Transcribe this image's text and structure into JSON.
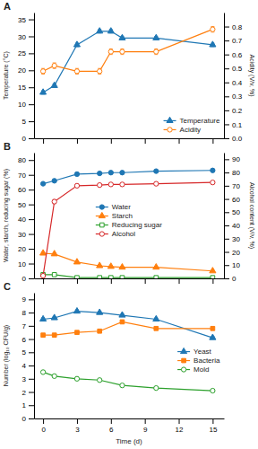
{
  "chart_data": [
    {
      "type": "line",
      "title": "A",
      "x": [
        0,
        1,
        3,
        5,
        6,
        7,
        10,
        15
      ],
      "xlim": [
        -0.8,
        16
      ],
      "xticks": [
        0,
        3,
        6,
        9,
        12,
        15
      ],
      "tick_labels": "y",
      "ylabel": "Temperature (°C)",
      "y2label": "Acidity (V/v, %)",
      "ylim": [
        0,
        37
      ],
      "yticks": [
        0,
        5,
        10,
        15,
        20,
        25,
        30,
        35
      ],
      "y2lim": [
        0,
        0.9
      ],
      "y2ticks": [
        {
          "value": 0,
          "label": "0.0"
        },
        0.1,
        0.2,
        0.3,
        0.4,
        0.5,
        0.6,
        0.7,
        0.8
      ],
      "grid": false,
      "legend": "lower right",
      "series": [
        {
          "name": "Temperature",
          "marker": "triangle",
          "values": [
            13.5,
            15.5,
            27.5,
            31.5,
            31.5,
            29.5,
            29.5,
            27.5
          ],
          "errors": [
            0.5,
            0.5,
            0.5,
            0.5,
            0.5,
            0.5,
            0.5,
            0.5
          ]
        },
        {
          "name": "Acidity",
          "marker": "circle-open",
          "axis": "y2",
          "values": [
            0.48,
            0.52,
            0.48,
            0.48,
            0.62,
            0.62,
            0.62,
            0.78
          ],
          "errors": [
            0.02,
            0.02,
            0.02,
            0.02,
            0.02,
            0.02,
            0.02,
            0.02
          ]
        }
      ]
    },
    {
      "type": "line",
      "title": "B",
      "x": [
        0,
        1,
        3,
        5,
        6,
        7,
        10,
        15
      ],
      "xlim": [
        -0.8,
        16
      ],
      "xticks": [
        0,
        3,
        6,
        9,
        12,
        15
      ],
      "tick_labels": "y",
      "ylabel": "Water, starch, reducing sugar (%)",
      "y2label": "Alcohol content (V/v, %)",
      "ylim": [
        0,
        85
      ],
      "yticks": [
        0,
        10,
        20,
        30,
        40,
        50,
        60,
        70,
        80
      ],
      "y2lim": [
        0,
        95
      ],
      "y2ticks": [
        0,
        10,
        20,
        30,
        40,
        50,
        60,
        70,
        80,
        90
      ],
      "grid": false,
      "legend": "center",
      "series": [
        {
          "name": "Water",
          "marker": "circle",
          "values": [
            64.0,
            66.0,
            70.5,
            71.0,
            71.5,
            71.5,
            72.5,
            73.0
          ],
          "errors": [
            0.5,
            0.5,
            0.5,
            0.5,
            0.5,
            0.5,
            0.5,
            0.5
          ]
        },
        {
          "name": "Starch",
          "marker": "triangle",
          "values": [
            17.0,
            16.5,
            11.0,
            8.5,
            8.0,
            7.5,
            7.5,
            5.0
          ],
          "errors": [
            0.5,
            0.5,
            0.5,
            0.4,
            0.4,
            0.4,
            0.4,
            0.4
          ]
        },
        {
          "name": "Reducing sugar",
          "marker": "square-open",
          "values": [
            2.5,
            2.5,
            0.5,
            0.5,
            0.5,
            0.5,
            0.5,
            0.5
          ],
          "errors": [
            0.2,
            0.2,
            0.1,
            0.1,
            0.1,
            0.1,
            0.1,
            0.1
          ]
        },
        {
          "name": "Alcohol",
          "marker": "circle-open",
          "axis": "y2",
          "values": [
            2.0,
            58.0,
            70.0,
            70.5,
            71.0,
            71.0,
            71.5,
            72.5
          ],
          "errors": [
            0.5,
            1.5,
            1.0,
            1.0,
            1.0,
            1.0,
            1.0,
            1.0
          ]
        }
      ]
    },
    {
      "type": "line",
      "title": "C",
      "x": [
        0,
        1,
        3,
        5,
        7,
        10,
        15
      ],
      "xlim": [
        -0.8,
        16
      ],
      "xticks": [
        0,
        3,
        6,
        9,
        12,
        15
      ],
      "xlabel": "Time (d)",
      "ylabel": "Number (log₁₀ CFU/g)",
      "ylim": [
        0,
        9.5
      ],
      "yticks": [
        0,
        1,
        2,
        3,
        4,
        5,
        6,
        7,
        8,
        9
      ],
      "grid": false,
      "legend": "right",
      "series": [
        {
          "name": "Yeast",
          "marker": "triangle",
          "values": [
            7.5,
            7.6,
            8.1,
            8.0,
            7.8,
            7.5,
            6.1
          ],
          "errors": [
            0.1,
            0.1,
            0.1,
            0.1,
            0.1,
            0.1,
            0.1
          ]
        },
        {
          "name": "Bacteria",
          "marker": "square",
          "values": [
            6.3,
            6.3,
            6.5,
            6.6,
            7.3,
            6.8,
            6.8
          ],
          "errors": [
            0.1,
            0.1,
            0.1,
            0.1,
            0.1,
            0.1,
            0.1
          ]
        },
        {
          "name": "Mold",
          "marker": "circle-open",
          "values": [
            3.5,
            3.2,
            3.0,
            2.9,
            2.5,
            2.3,
            2.1
          ],
          "errors": [
            0.1,
            0.1,
            0.1,
            0.1,
            0.1,
            0.1,
            0.1
          ]
        }
      ]
    }
  ]
}
